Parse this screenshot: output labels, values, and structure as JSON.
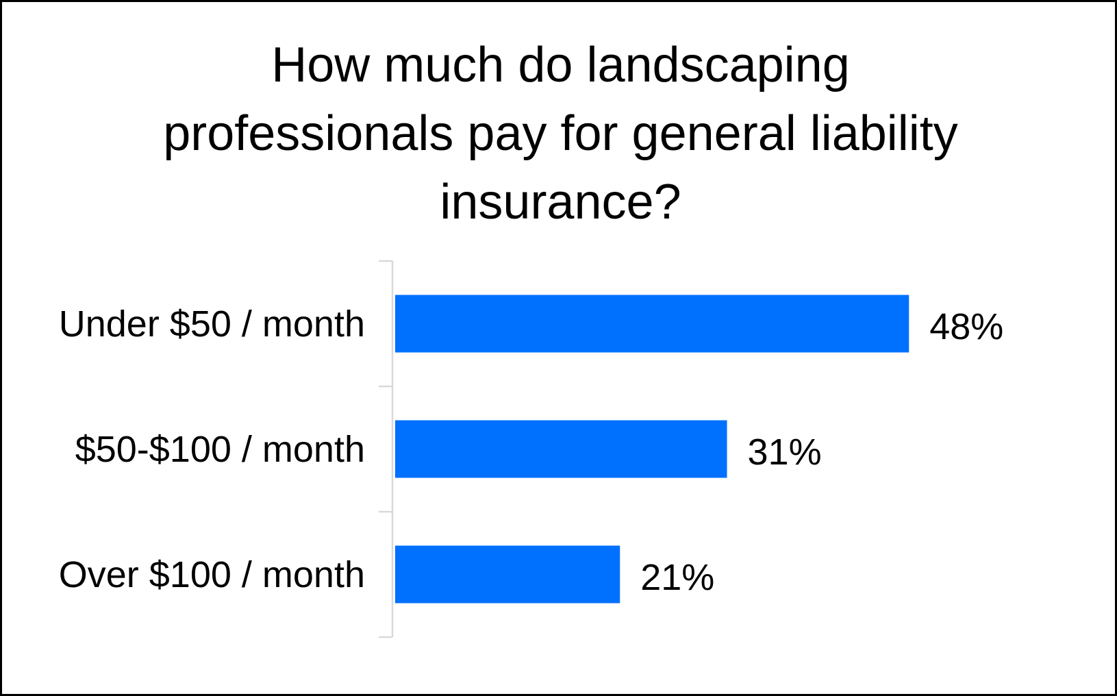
{
  "chart_data": {
    "type": "bar",
    "orientation": "horizontal",
    "title_lines": [
      "How much do landscaping",
      "professionals pay for general liability",
      "insurance?"
    ],
    "categories": [
      "Under $50 / month",
      "$50-$100 / month",
      "Over $100 / month"
    ],
    "values": [
      48,
      31,
      21
    ],
    "data_labels": [
      "48%",
      "31%",
      "21%"
    ],
    "unit": "%",
    "xlim": [
      0,
      60
    ],
    "grid": false,
    "legend": "none",
    "bar_color": "#0070FF"
  }
}
